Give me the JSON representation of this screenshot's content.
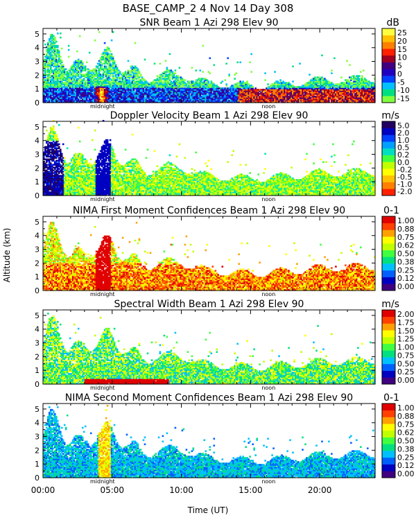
{
  "figure": {
    "title": "BASE_CAMP_2    4 Nov 14 Day 308",
    "ylabel": "Altitude (km)",
    "xlabel": "Time (UT)",
    "x_ticks": [
      "00:00",
      "05:00",
      "10:00",
      "15:00",
      "20:00"
    ],
    "midnight_label": "midnight",
    "noon_label": "noon"
  },
  "chart_data": [
    {
      "type": "heatmap",
      "title": "SNR Beam 1 Azi 298 Elev 90",
      "unit": "dB",
      "xlim": [
        0,
        24
      ],
      "ylim": [
        0,
        5.4
      ],
      "y_ticks": [
        "0",
        "1",
        "2",
        "3",
        "4",
        "5"
      ],
      "colorbar_ticks": [
        "25",
        "20",
        "15",
        "10",
        "5",
        "0",
        "-5",
        "-10",
        "-15"
      ],
      "colors": [
        "#80ff40",
        "#00e080",
        "#00c0ff",
        "#0040ff",
        "#2000c0",
        "#400080",
        "#a00020",
        "#ff2000",
        "#ff8000",
        "#ffc000",
        "#ffff40"
      ]
    },
    {
      "type": "heatmap",
      "title": "Doppler Velocity Beam 1 Azi 298 Elev 90",
      "unit": "m/s",
      "xlim": [
        0,
        24
      ],
      "ylim": [
        0,
        5.4
      ],
      "y_ticks": [
        "0",
        "1",
        "2",
        "3",
        "4",
        "5"
      ],
      "colorbar_ticks": [
        "5.0",
        "2.0",
        "1.0",
        "0.5",
        "0.2",
        "0.0",
        "-0.2",
        "-0.5",
        "-1.0",
        "-2.0"
      ],
      "colors": [
        "#ff2000",
        "#ff8000",
        "#ffc000",
        "#ffff00",
        "#c0ff00",
        "#40ff40",
        "#00e0c0",
        "#00a0ff",
        "#0040ff",
        "#0000c0",
        "#200060"
      ]
    },
    {
      "type": "heatmap",
      "title": "NIMA First Moment Confidences Beam 1 Azi 298 Elev 90",
      "unit": "0-1",
      "xlim": [
        0,
        24
      ],
      "ylim": [
        0,
        5.4
      ],
      "y_ticks": [
        "0",
        "1",
        "2",
        "3",
        "4",
        "5"
      ],
      "colorbar_ticks": [
        "1.00",
        "0.88",
        "0.75",
        "0.62",
        "0.50",
        "0.38",
        "0.25",
        "0.12",
        "0.00"
      ],
      "colors": [
        "#400080",
        "#0000c0",
        "#0060ff",
        "#00c0ff",
        "#00e080",
        "#40ff40",
        "#c0ff00",
        "#ffff00",
        "#ffa000",
        "#ff4000",
        "#e00000"
      ]
    },
    {
      "type": "heatmap",
      "title": "Spectral Width Beam 1 Azi 298 Elev 90",
      "unit": "m/s",
      "xlim": [
        0,
        24
      ],
      "ylim": [
        0,
        5.4
      ],
      "y_ticks": [
        "0",
        "1",
        "2",
        "3",
        "4",
        "5"
      ],
      "colorbar_ticks": [
        "2.00",
        "1.75",
        "1.50",
        "1.25",
        "1.00",
        "0.75",
        "0.50",
        "0.25",
        "0.00"
      ],
      "colors": [
        "#400080",
        "#0000c0",
        "#0060ff",
        "#00c0ff",
        "#00e080",
        "#40ff40",
        "#c0ff00",
        "#ffff00",
        "#ffa000",
        "#ff4000",
        "#e00000"
      ]
    },
    {
      "type": "heatmap",
      "title": "NIMA Second Moment Confidences Beam 1 Azi 298 Elev 90",
      "unit": "0-1",
      "xlim": [
        0,
        24
      ],
      "ylim": [
        0,
        5.4
      ],
      "y_ticks": [
        "0",
        "1",
        "2",
        "3",
        "4",
        "5"
      ],
      "colorbar_ticks": [
        "1.00",
        "0.88",
        "0.75",
        "0.62",
        "0.50",
        "0.38",
        "0.25",
        "0.12",
        "0.00"
      ],
      "colors": [
        "#400080",
        "#0000c0",
        "#0060ff",
        "#00c0ff",
        "#00e080",
        "#40ff40",
        "#c0ff00",
        "#ffff00",
        "#ffa000",
        "#ff4000",
        "#e00000"
      ]
    }
  ]
}
